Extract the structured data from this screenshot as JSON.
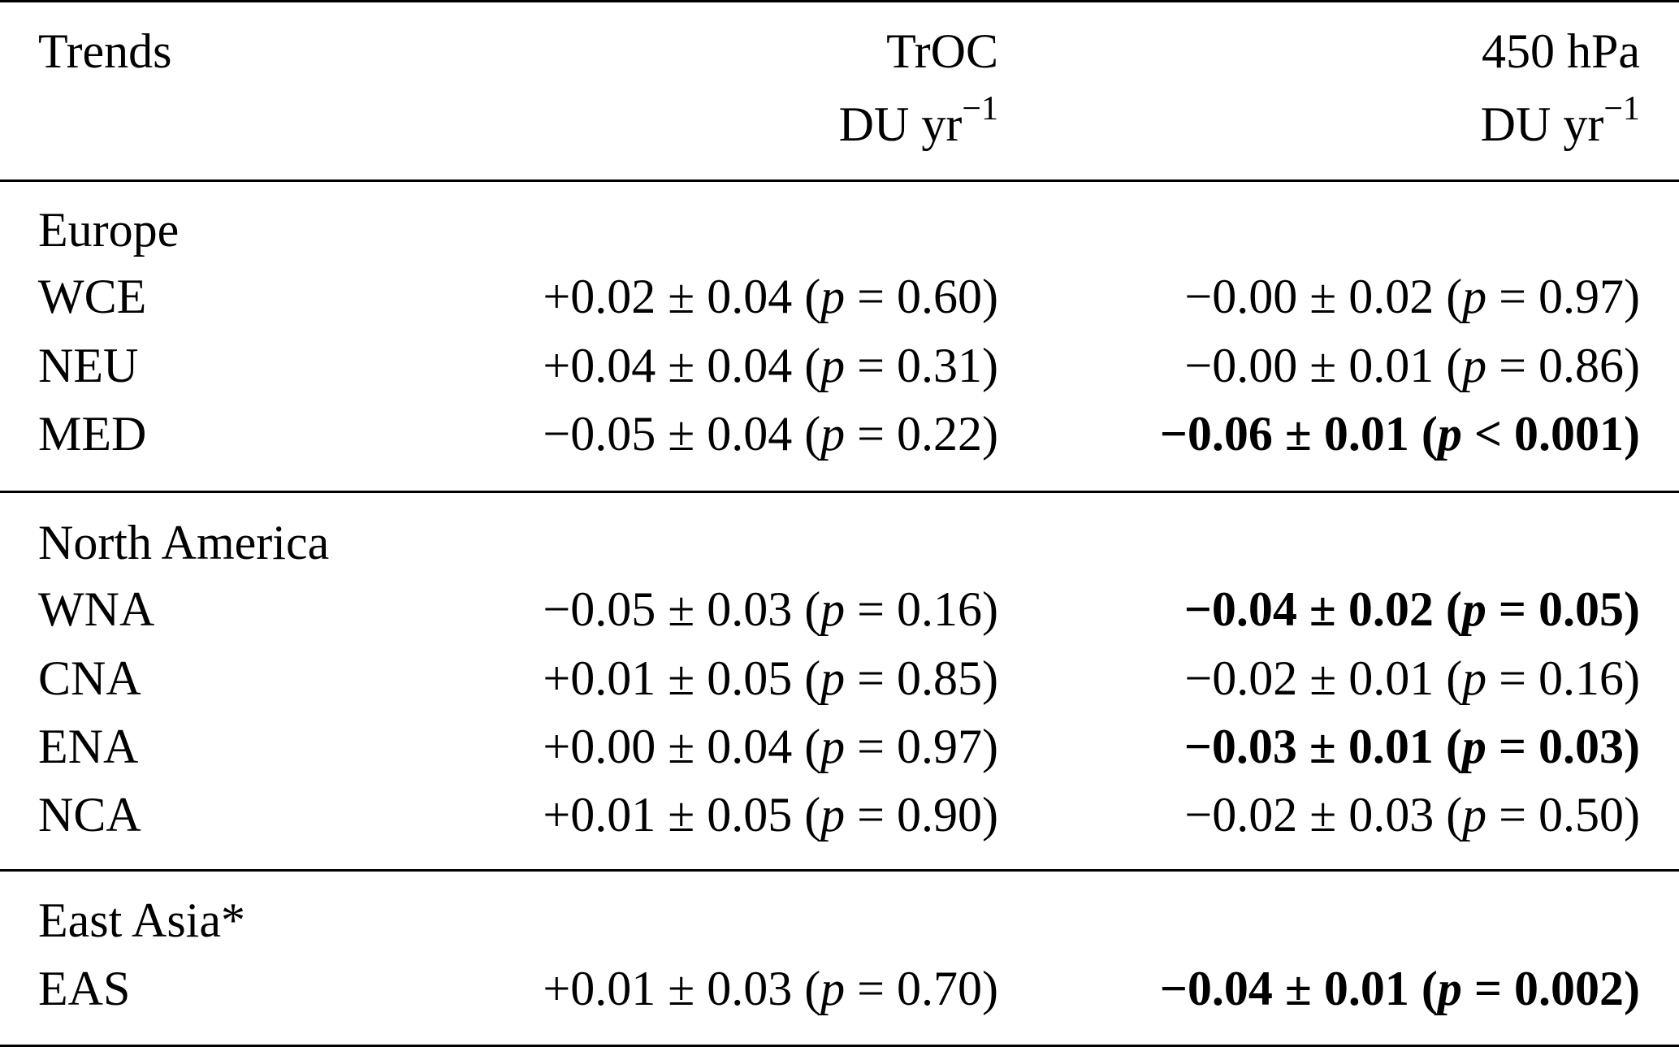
{
  "header": {
    "col1": "Trends",
    "col2_line1": "TrOC",
    "col2_unit": "DU yr",
    "col2_exp": "−1",
    "col3_line1": "450 hPa",
    "col3_unit": "DU yr",
    "col3_exp": "−1"
  },
  "groups": [
    {
      "name": "Europe",
      "rows": [
        {
          "region": "WCE",
          "troc": "+0.02 ± 0.04 (",
          "troc_p": "p",
          "troc_rest": " = 0.60)",
          "hpa": "−0.00 ± 0.02 (",
          "hpa_p": "p",
          "hpa_rest": " = 0.97)",
          "bold": false
        },
        {
          "region": "NEU",
          "troc": "+0.04 ± 0.04 (",
          "troc_p": "p",
          "troc_rest": " = 0.31)",
          "hpa": "−0.00 ± 0.01 (",
          "hpa_p": "p",
          "hpa_rest": " = 0.86)",
          "bold": false
        },
        {
          "region": "MED",
          "troc": "−0.05 ± 0.04 (",
          "troc_p": "p",
          "troc_rest": " = 0.22)",
          "hpa": "−0.06 ± 0.01 (",
          "hpa_p": "p",
          "hpa_rest": " < 0.001)",
          "bold": true
        }
      ]
    },
    {
      "name": "North America",
      "rows": [
        {
          "region": "WNA",
          "troc": "−0.05 ± 0.03 (",
          "troc_p": "p",
          "troc_rest": " = 0.16)",
          "hpa": "−0.04 ± 0.02 (",
          "hpa_p": "p",
          "hpa_rest": " = 0.05)",
          "bold": true
        },
        {
          "region": "CNA",
          "troc": "+0.01 ± 0.05 (",
          "troc_p": "p",
          "troc_rest": " = 0.85)",
          "hpa": "−0.02 ± 0.01 (",
          "hpa_p": "p",
          "hpa_rest": " = 0.16)",
          "bold": false
        },
        {
          "region": "ENA",
          "troc": "+0.00 ± 0.04 (",
          "troc_p": "p",
          "troc_rest": " = 0.97)",
          "hpa": "−0.03 ± 0.01 (",
          "hpa_p": "p",
          "hpa_rest": " = 0.03)",
          "bold": true
        },
        {
          "region": "NCA",
          "troc": "+0.01 ± 0.05 (",
          "troc_p": "p",
          "troc_rest": " = 0.90)",
          "hpa": "−0.02 ± 0.03 (",
          "hpa_p": "p",
          "hpa_rest": " = 0.50)",
          "bold": false
        }
      ]
    },
    {
      "name": "East Asia*",
      "rows": [
        {
          "region": "EAS",
          "troc": "+0.01 ± 0.03 (",
          "troc_p": "p",
          "troc_rest": " = 0.70)",
          "hpa": "−0.04 ± 0.01 (",
          "hpa_p": "p",
          "hpa_rest": " = 0.002)",
          "bold": true
        }
      ]
    }
  ]
}
